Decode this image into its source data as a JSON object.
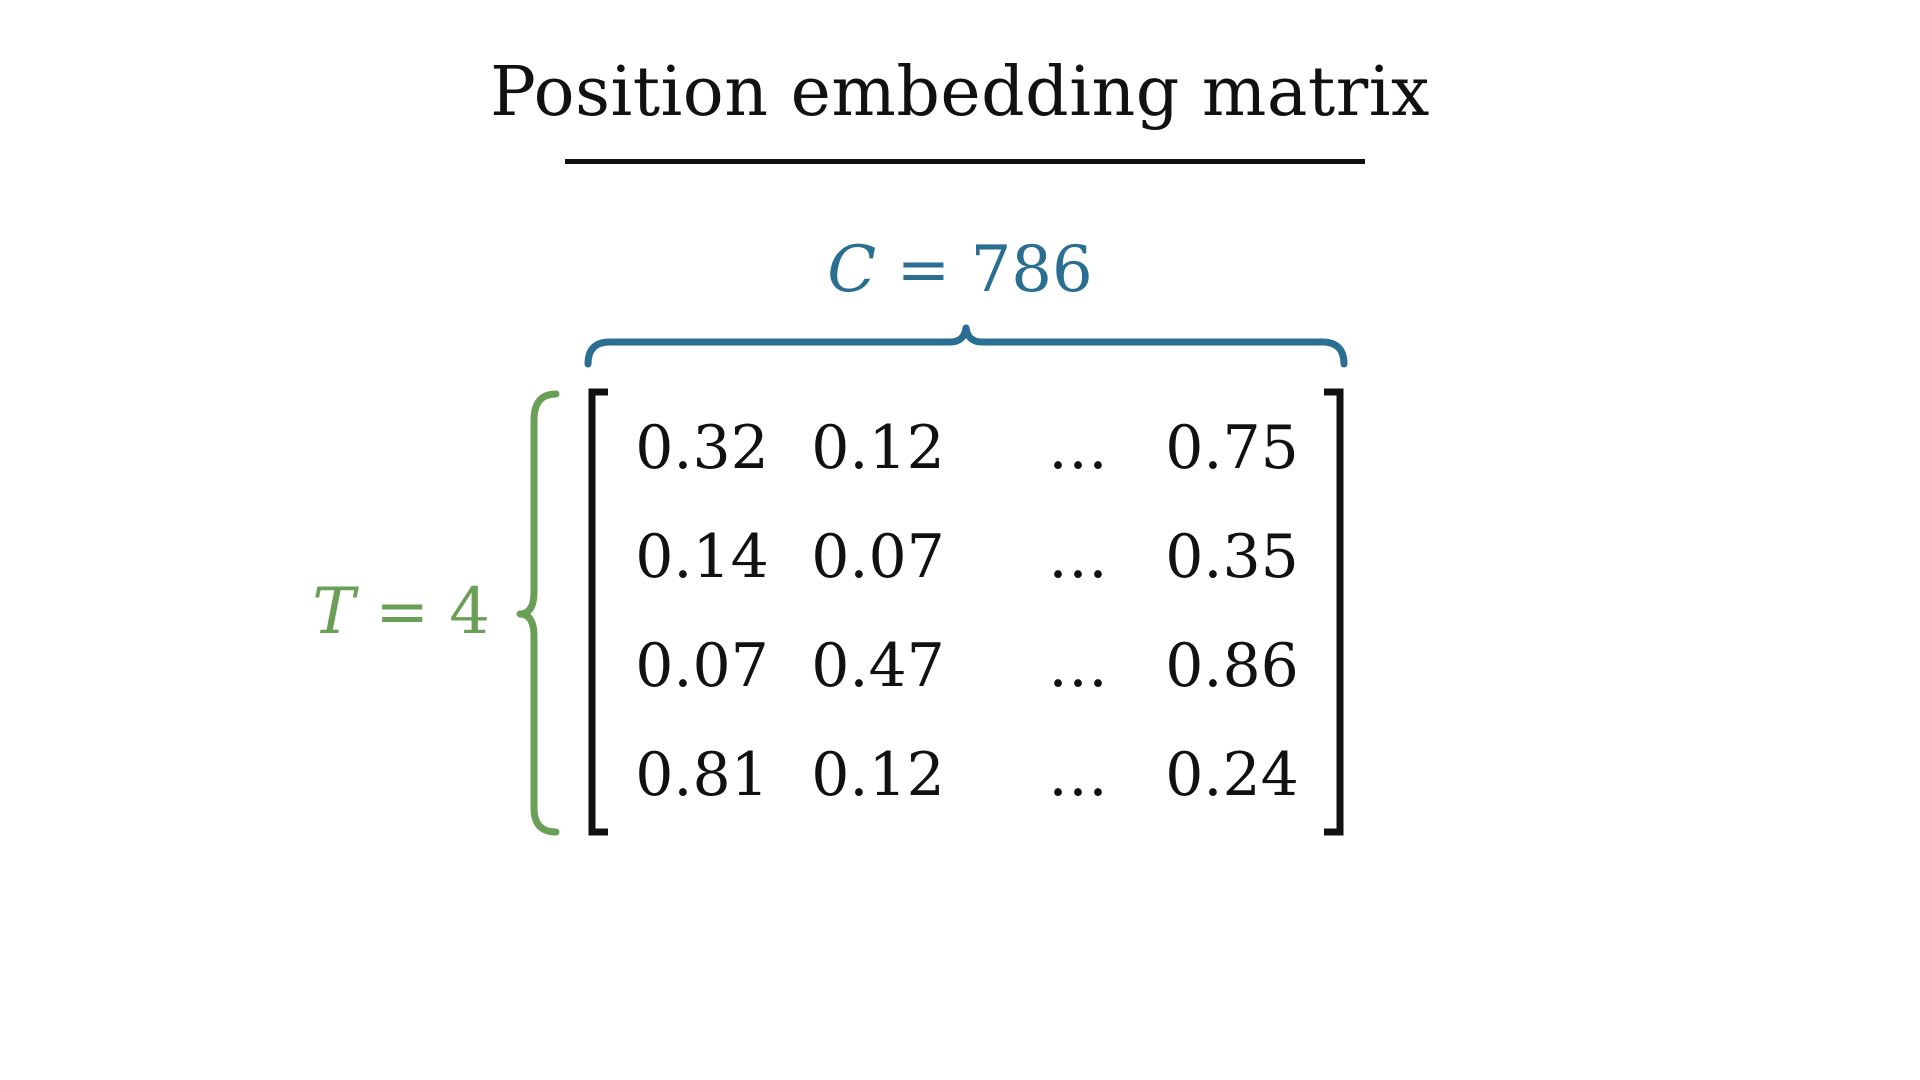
{
  "title": "Position embedding matrix",
  "column_brace": {
    "symbol": "C",
    "equals": "=",
    "value": "786",
    "color": "#2a6e92"
  },
  "row_brace": {
    "symbol": "T",
    "equals": "=",
    "value": "4",
    "color": "#6a9f57"
  },
  "matrix": {
    "rows": [
      [
        "0.32",
        "0.12",
        "…",
        "0.75"
      ],
      [
        "0.14",
        "0.07",
        "…",
        "0.35"
      ],
      [
        "0.07",
        "0.47",
        "…",
        "0.86"
      ],
      [
        "0.81",
        "0.12",
        "…",
        "0.24"
      ]
    ]
  }
}
